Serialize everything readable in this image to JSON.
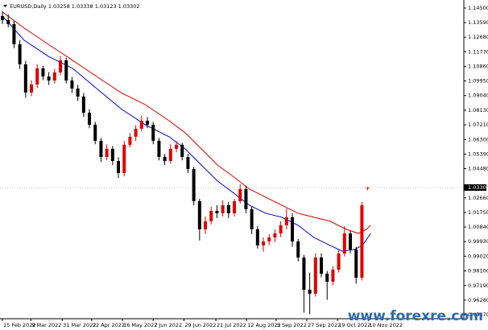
{
  "chart_data": {
    "type": "candlestick",
    "title": "EURUSD,Daily  1.03258 1.03338 1.03123 1.03302",
    "up_color": "#e00000",
    "down_color": "#000000",
    "ohlc": [
      [
        1.14,
        1.143,
        1.135,
        1.1375
      ],
      [
        1.1375,
        1.141,
        1.133,
        1.135
      ],
      [
        1.135,
        1.137,
        1.12,
        1.1224
      ],
      [
        1.1224,
        1.125,
        1.107,
        1.1099
      ],
      [
        1.1099,
        1.112,
        1.089,
        1.0923
      ],
      [
        1.0923,
        1.1,
        1.09,
        1.0973
      ],
      [
        1.0973,
        1.11,
        1.095,
        1.1074
      ],
      [
        1.1074,
        1.109,
        1.1,
        1.1023
      ],
      [
        1.1023,
        1.105,
        1.097,
        1.0998
      ],
      [
        1.0998,
        1.107,
        1.098,
        1.1048
      ],
      [
        1.1048,
        1.115,
        1.103,
        1.1124
      ],
      [
        1.1124,
        1.114,
        1.098,
        1.0998
      ],
      [
        1.0998,
        1.102,
        1.092,
        1.0948
      ],
      [
        1.0948,
        1.097,
        1.087,
        1.0898
      ],
      [
        1.0898,
        1.092,
        1.077,
        1.0797
      ],
      [
        1.0797,
        1.082,
        1.07,
        1.0722
      ],
      [
        1.0722,
        1.074,
        1.06,
        1.0622
      ],
      [
        1.0622,
        1.064,
        1.049,
        1.0521
      ],
      [
        1.0521,
        1.06,
        1.05,
        1.0572
      ],
      [
        1.0572,
        1.059,
        1.047,
        1.0496
      ],
      [
        1.0496,
        1.052,
        1.039,
        1.0421
      ],
      [
        1.0421,
        1.062,
        1.04,
        1.0597
      ],
      [
        1.0597,
        1.067,
        1.058,
        1.0647
      ],
      [
        1.0647,
        1.072,
        1.062,
        1.0697
      ],
      [
        1.0697,
        1.078,
        1.068,
        1.0747
      ],
      [
        1.0747,
        1.077,
        1.07,
        1.0722
      ],
      [
        1.0722,
        1.074,
        1.06,
        1.0622
      ],
      [
        1.0622,
        1.064,
        1.05,
        1.0521
      ],
      [
        1.0521,
        1.054,
        1.047,
        1.0496
      ],
      [
        1.0496,
        1.06,
        1.048,
        1.0572
      ],
      [
        1.0572,
        1.062,
        1.055,
        1.0597
      ],
      [
        1.0597,
        1.061,
        1.05,
        1.0521
      ],
      [
        1.0521,
        1.054,
        1.042,
        1.0446
      ],
      [
        1.0446,
        1.046,
        1.022,
        1.0245
      ],
      [
        1.0245,
        1.026,
        1.0,
        1.007
      ],
      [
        1.007,
        1.015,
        1.004,
        1.012
      ],
      [
        1.012,
        1.021,
        1.01,
        1.0185
      ],
      [
        1.0185,
        1.022,
        1.014,
        1.017
      ],
      [
        1.017,
        1.025,
        1.015,
        1.022
      ],
      [
        1.022,
        1.024,
        1.014,
        1.017
      ],
      [
        1.017,
        1.026,
        1.015,
        1.0245
      ],
      [
        1.0245,
        1.035,
        1.023,
        1.0321
      ],
      [
        1.0321,
        1.034,
        1.017,
        1.0195
      ],
      [
        1.0195,
        1.021,
        1.004,
        1.007
      ],
      [
        1.007,
        1.009,
        0.995,
        0.9969
      ],
      [
        0.9969,
        1.002,
        0.993,
        0.9994
      ],
      [
        0.9994,
        1.004,
        0.997,
        1.0019
      ],
      [
        1.0019,
        1.007,
        0.999,
        1.0044
      ],
      [
        1.0044,
        1.012,
        1.002,
        1.0095
      ],
      [
        1.0095,
        1.02,
        1.007,
        1.0145
      ],
      [
        1.0145,
        1.017,
        0.996,
        0.9994
      ],
      [
        0.9994,
        1.001,
        0.987,
        0.9894
      ],
      [
        0.9894,
        0.991,
        0.955,
        0.9693
      ],
      [
        0.9693,
        0.98,
        0.954,
        0.9668
      ],
      [
        0.9668,
        0.992,
        0.965,
        0.9894
      ],
      [
        0.9894,
        0.992,
        0.977,
        0.9793
      ],
      [
        0.9793,
        0.981,
        0.963,
        0.9743
      ],
      [
        0.9743,
        0.984,
        0.972,
        0.9818
      ],
      [
        0.9818,
        0.994,
        0.98,
        0.9919
      ],
      [
        0.9919,
        1.009,
        0.99,
        1.0044
      ],
      [
        1.0044,
        1.006,
        0.992,
        0.9944
      ],
      [
        0.9944,
        0.996,
        0.973,
        0.9768
      ],
      [
        0.9768,
        1.024,
        0.975,
        1.022
      ],
      [
        1.03258,
        1.03338,
        1.03123,
        1.03302
      ]
    ],
    "lines": [
      {
        "color": "#0000cc",
        "x": [
          0,
          3.75,
          7.9,
          12.1,
          16.25,
          20.4,
          24.6,
          28.75,
          31.5,
          34.3,
          37.1,
          39.9,
          42.6,
          45.4,
          48.2,
          51,
          53.7,
          56.5,
          58.6,
          60.7,
          62.1,
          63.5
        ],
        "values": [
          1.14,
          1.1249,
          1.1149,
          1.1074,
          1.0948,
          1.0823,
          1.0722,
          1.0647,
          1.0572,
          1.0471,
          1.0371,
          1.0295,
          1.022,
          1.017,
          1.0145,
          1.0095,
          1.0019,
          0.9969,
          0.9934,
          0.9944,
          0.9969,
          1.0044
        ]
      },
      {
        "color": "#e00000",
        "x": [
          0,
          3.75,
          7.9,
          12.1,
          16.25,
          20.4,
          24.6,
          28.75,
          31.5,
          34.3,
          37.1,
          39.9,
          42.6,
          45.4,
          48.2,
          51,
          53.7,
          56.5,
          59.3,
          61.4,
          62.8,
          63.5
        ],
        "values": [
          1.1425,
          1.1325,
          1.1224,
          1.1124,
          1.1023,
          1.0923,
          1.0848,
          1.0747,
          1.0672,
          1.0572,
          1.0471,
          1.0396,
          1.0321,
          1.027,
          1.022,
          1.017,
          1.0145,
          1.012,
          1.007,
          1.0044,
          1.007,
          1.0095
        ]
      }
    ],
    "last_price": 1.03302,
    "xlim": [
      -0.42,
      79.58
    ],
    "ylim": [
      0.9512,
      1.15
    ],
    "yticks": [
      {
        "value": 1.145,
        "label": "1.14500"
      },
      {
        "value": 1.1359,
        "label": "1.13590"
      },
      {
        "value": 1.1268,
        "label": "1.12680"
      },
      {
        "value": 1.1177,
        "label": "1.11770"
      },
      {
        "value": 1.1086,
        "label": "1.10860"
      },
      {
        "value": 1.0995,
        "label": "1.09950"
      },
      {
        "value": 1.0904,
        "label": "1.09040"
      },
      {
        "value": 1.0813,
        "label": "1.08130"
      },
      {
        "value": 1.0721,
        "label": "1.07210"
      },
      {
        "value": 1.063,
        "label": "1.06300"
      },
      {
        "value": 1.0539,
        "label": "1.05390"
      },
      {
        "value": 1.0448,
        "label": "1.04480"
      },
      {
        "value": 1.0266,
        "label": "1.02660"
      },
      {
        "value": 1.0175,
        "label": "1.01750"
      },
      {
        "value": 1.0084,
        "label": "1.00840"
      },
      {
        "value": 0.9993,
        "label": "0.99930"
      },
      {
        "value": 0.9902,
        "label": "0.99020"
      },
      {
        "value": 0.981,
        "label": "0.98100"
      },
      {
        "value": 0.9719,
        "label": "0.97190"
      },
      {
        "value": 0.9628,
        "label": "0.96280"
      },
      {
        "value": 0.9537,
        "label": "0.95370"
      }
    ],
    "xticks": [
      {
        "value": 0,
        "label": "15 Feb 2022"
      },
      {
        "value": 4.9,
        "label": "9 Mar 2022"
      },
      {
        "value": 10.3,
        "label": "31 Mar 2022"
      },
      {
        "value": 15.4,
        "label": "22 Apr 2022"
      },
      {
        "value": 20.7,
        "label": "16 May 2022"
      },
      {
        "value": 26,
        "label": "7 Jun 2022"
      },
      {
        "value": 31.3,
        "label": "29 Jun 2022"
      },
      {
        "value": 36.8,
        "label": "21 Jul 2022"
      },
      {
        "value": 42.1,
        "label": "12 Aug 2022"
      },
      {
        "value": 47.2,
        "label": "5 Sep 2022"
      },
      {
        "value": 52.5,
        "label": "27 Sep 2022"
      },
      {
        "value": 57.8,
        "label": "19 Oct 2022"
      },
      {
        "value": 63.1,
        "label": "10 Nov 2022"
      }
    ],
    "watermark": "www.forexre.com"
  }
}
